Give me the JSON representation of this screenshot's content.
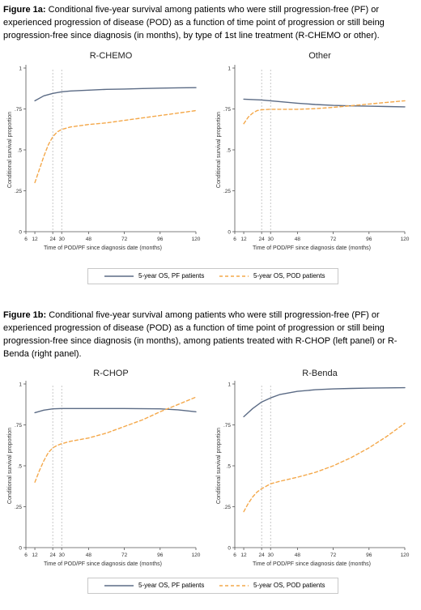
{
  "figure_a": {
    "caption_label": "Figure 1a:",
    "caption_text": " Conditional five-year survival among patients who were still progression-free (PF) or experienced progression of disease (POD) as a function of time point of progression or still being progression-free since diagnosis (in months), by type of 1st line treatment (R-CHEMO or other)."
  },
  "figure_b": {
    "caption_label": "Figure 1b:",
    "caption_text": " Conditional five-year survival among patients who were still progression-free (PF) or experienced progression of disease (POD)  as a function of time point of progression or still being progression-free since diagnosis (in months), among patients treated with R-CHOP (left panel) or R-Benda (right panel)."
  },
  "legend": {
    "pf_label": "5-year OS, PF patients",
    "pod_label": "5-year OS, POD patients"
  },
  "colors": {
    "pf": "#5b6b85",
    "pod": "#f4a84a",
    "ref_line": "#b0b0b0",
    "axis": "#555555"
  },
  "chart_data": [
    {
      "type": "line",
      "title": "R-CHEMO",
      "xlabel": "Time of POD/PF since diagnosis date (months)",
      "ylabel": "Conditional survival proportion",
      "xlim": [
        6,
        120
      ],
      "ylim": [
        0,
        1
      ],
      "xticks": [
        6,
        12,
        24,
        30,
        48,
        72,
        96,
        120
      ],
      "yticks": [
        0,
        0.25,
        0.5,
        0.75,
        1
      ],
      "ytick_labels": [
        "0",
        ".25",
        ".5",
        ".75",
        "1"
      ],
      "reference_lines_x": [
        24,
        30
      ],
      "series": [
        {
          "name": "5-year OS, PF patients",
          "style": "solid",
          "x": [
            12,
            18,
            24,
            30,
            36,
            48,
            60,
            72,
            84,
            96,
            108,
            120
          ],
          "y": [
            0.8,
            0.83,
            0.845,
            0.855,
            0.86,
            0.865,
            0.87,
            0.872,
            0.875,
            0.877,
            0.879,
            0.88
          ]
        },
        {
          "name": "5-year OS, POD patients",
          "style": "dashed",
          "x": [
            12,
            15,
            18,
            21,
            24,
            27,
            30,
            36,
            48,
            60,
            72,
            84,
            96,
            108,
            120
          ],
          "y": [
            0.3,
            0.38,
            0.46,
            0.53,
            0.58,
            0.61,
            0.625,
            0.64,
            0.655,
            0.665,
            0.68,
            0.695,
            0.71,
            0.725,
            0.74
          ]
        }
      ]
    },
    {
      "type": "line",
      "title": "Other",
      "xlabel": "Time of POD/PF since diagnosis date (months)",
      "ylabel": "Conditional survival proportion",
      "xlim": [
        6,
        120
      ],
      "ylim": [
        0,
        1
      ],
      "xticks": [
        6,
        12,
        24,
        30,
        48,
        72,
        96,
        120
      ],
      "yticks": [
        0,
        0.25,
        0.5,
        0.75,
        1
      ],
      "ytick_labels": [
        "0",
        ".25",
        ".5",
        ".75",
        "1"
      ],
      "reference_lines_x": [
        24,
        30
      ],
      "series": [
        {
          "name": "5-year OS, PF patients",
          "style": "solid",
          "x": [
            12,
            24,
            30,
            36,
            48,
            60,
            72,
            84,
            96,
            108,
            120
          ],
          "y": [
            0.81,
            0.805,
            0.8,
            0.795,
            0.785,
            0.777,
            0.772,
            0.769,
            0.767,
            0.765,
            0.763
          ]
        },
        {
          "name": "5-year OS, POD patients",
          "style": "dashed",
          "x": [
            12,
            15,
            18,
            21,
            24,
            30,
            36,
            48,
            60,
            72,
            84,
            96,
            108,
            120
          ],
          "y": [
            0.66,
            0.7,
            0.725,
            0.74,
            0.745,
            0.748,
            0.748,
            0.748,
            0.752,
            0.76,
            0.77,
            0.78,
            0.79,
            0.8
          ]
        }
      ]
    },
    {
      "type": "line",
      "title": "R-CHOP",
      "xlabel": "Time of POD/PF since diagnosis date (months)",
      "ylabel": "Conditional survival proportion",
      "xlim": [
        6,
        120
      ],
      "ylim": [
        0,
        1
      ],
      "xticks": [
        6,
        12,
        24,
        30,
        48,
        72,
        96,
        120
      ],
      "yticks": [
        0,
        0.25,
        0.5,
        0.75,
        1
      ],
      "ytick_labels": [
        "0",
        ".25",
        ".5",
        ".75",
        "1"
      ],
      "reference_lines_x": [
        24,
        30
      ],
      "series": [
        {
          "name": "5-year OS, PF patients",
          "style": "solid",
          "x": [
            12,
            18,
            24,
            30,
            48,
            72,
            96,
            108,
            120
          ],
          "y": [
            0.825,
            0.84,
            0.848,
            0.85,
            0.85,
            0.85,
            0.848,
            0.842,
            0.83
          ]
        },
        {
          "name": "5-year OS, POD patients",
          "style": "dashed",
          "x": [
            12,
            15,
            18,
            21,
            24,
            27,
            30,
            36,
            48,
            60,
            72,
            84,
            96,
            108,
            120
          ],
          "y": [
            0.4,
            0.47,
            0.53,
            0.58,
            0.61,
            0.625,
            0.635,
            0.65,
            0.67,
            0.7,
            0.74,
            0.78,
            0.83,
            0.875,
            0.92
          ]
        }
      ]
    },
    {
      "type": "line",
      "title": "R-Benda",
      "xlabel": "Time of POD/PF since diagnosis date (months)",
      "ylabel": "Conditional survival proportion",
      "xlim": [
        6,
        120
      ],
      "ylim": [
        0,
        1
      ],
      "xticks": [
        6,
        12,
        24,
        30,
        48,
        72,
        96,
        120
      ],
      "yticks": [
        0,
        0.25,
        0.5,
        0.75,
        1
      ],
      "ytick_labels": [
        "0",
        ".25",
        ".5",
        ".75",
        "1"
      ],
      "reference_lines_x": [
        24,
        30
      ],
      "series": [
        {
          "name": "5-year OS, PF patients",
          "style": "solid",
          "x": [
            12,
            18,
            24,
            30,
            36,
            48,
            60,
            72,
            84,
            96,
            108,
            120
          ],
          "y": [
            0.8,
            0.85,
            0.89,
            0.915,
            0.935,
            0.955,
            0.965,
            0.97,
            0.973,
            0.975,
            0.976,
            0.977
          ]
        },
        {
          "name": "5-year OS, POD patients",
          "style": "dashed",
          "x": [
            12,
            15,
            18,
            21,
            24,
            27,
            30,
            36,
            48,
            60,
            72,
            84,
            96,
            108,
            120
          ],
          "y": [
            0.22,
            0.27,
            0.31,
            0.34,
            0.36,
            0.375,
            0.39,
            0.405,
            0.43,
            0.46,
            0.5,
            0.55,
            0.61,
            0.68,
            0.76
          ]
        }
      ]
    }
  ]
}
